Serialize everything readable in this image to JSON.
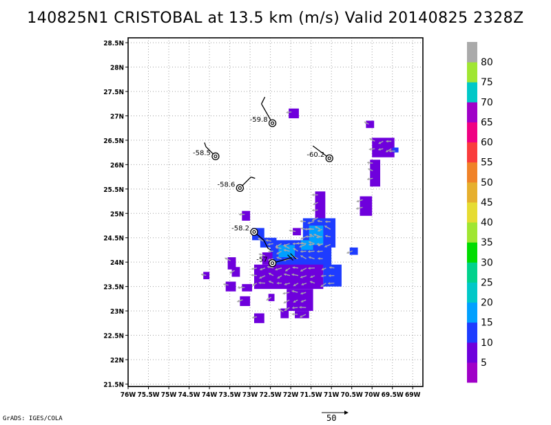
{
  "title": "140825N1 CRISTOBAL at 13.5 km (m/s) Valid 20140825 2328Z",
  "credit": "GrADS: IGES/COLA",
  "reference_vector": {
    "label": "50",
    "value": 50
  },
  "colors": {
    "grid": "#a0a0a0",
    "frame": "#000000",
    "vector": "#a8a8a8"
  },
  "chart_data": {
    "type": "heatmap",
    "title": "140825N1 CRISTOBAL at 13.5 km (m/s) Valid 20140825 2328Z",
    "xlim": [
      -76,
      -68.75
    ],
    "ylim": [
      21.45,
      28.6
    ],
    "grid": true,
    "legend": "right",
    "x_ticks": [
      {
        "v": -76,
        "label": "76W"
      },
      {
        "v": -75.5,
        "label": "75.5W"
      },
      {
        "v": -75,
        "label": "75W"
      },
      {
        "v": -74.5,
        "label": "74.5W"
      },
      {
        "v": -74,
        "label": "74W"
      },
      {
        "v": -73.5,
        "label": "73.5W"
      },
      {
        "v": -73,
        "label": "73W"
      },
      {
        "v": -72.5,
        "label": "72.5W"
      },
      {
        "v": -72,
        "label": "72W"
      },
      {
        "v": -71.5,
        "label": "71.5W"
      },
      {
        "v": -71,
        "label": "71W"
      },
      {
        "v": -70.5,
        "label": "70.5W"
      },
      {
        "v": -70,
        "label": "70W"
      },
      {
        "v": -69.5,
        "label": "69.5W"
      },
      {
        "v": -69,
        "label": "69W"
      }
    ],
    "y_ticks": [
      {
        "v": 21.5,
        "label": "21.5N"
      },
      {
        "v": 22,
        "label": "22N"
      },
      {
        "v": 22.5,
        "label": "22.5N"
      },
      {
        "v": 23,
        "label": "23N"
      },
      {
        "v": 23.5,
        "label": "23.5N"
      },
      {
        "v": 24,
        "label": "24N"
      },
      {
        "v": 24.5,
        "label": "24.5N"
      },
      {
        "v": 25,
        "label": "25N"
      },
      {
        "v": 25.5,
        "label": "25.5N"
      },
      {
        "v": 26,
        "label": "26N"
      },
      {
        "v": 26.5,
        "label": "26.5N"
      },
      {
        "v": 27,
        "label": "27N"
      },
      {
        "v": 27.5,
        "label": "27.5N"
      },
      {
        "v": 28,
        "label": "28N"
      },
      {
        "v": 28.5,
        "label": "28.5N"
      }
    ],
    "colorbar": {
      "colors": [
        "#a000c8",
        "#6e00dc",
        "#1e3cff",
        "#00a0ff",
        "#00c8c8",
        "#00d28c",
        "#00dc00",
        "#a0e632",
        "#e6dc32",
        "#e6af2d",
        "#f08228",
        "#fa3c3c",
        "#f00082",
        "#a000c8",
        "#00c8c8",
        "#a0e632",
        "#aaaaaa"
      ],
      "labels": [
        {
          "v": 5,
          "label": "5"
        },
        {
          "v": 10,
          "label": "10"
        },
        {
          "v": 15,
          "label": "15"
        },
        {
          "v": 20,
          "label": "20"
        },
        {
          "v": 25,
          "label": "25"
        },
        {
          "v": 30,
          "label": "30"
        },
        {
          "v": 35,
          "label": "35"
        },
        {
          "v": 40,
          "label": "40"
        },
        {
          "v": 45,
          "label": "45"
        },
        {
          "v": 50,
          "label": "50"
        },
        {
          "v": 55,
          "label": "55"
        },
        {
          "v": 60,
          "label": "60"
        },
        {
          "v": 65,
          "label": "65"
        },
        {
          "v": 70,
          "label": "70"
        },
        {
          "v": 75,
          "label": "75"
        },
        {
          "v": 80,
          "label": "80"
        }
      ]
    },
    "regions": [
      {
        "lon": [
          -71.4,
          -71.15
        ],
        "lat": [
          24.8,
          25.45
        ],
        "value": 5
      },
      {
        "lon": [
          -71.7,
          -70.9
        ],
        "lat": [
          24.3,
          24.9
        ],
        "value": 10
      },
      {
        "lon": [
          -72.5,
          -71.0
        ],
        "lat": [
          23.9,
          24.45
        ],
        "value": 10
      },
      {
        "lon": [
          -72.9,
          -71.2
        ],
        "lat": [
          23.45,
          23.95
        ],
        "value": 5
      },
      {
        "lon": [
          -71.2,
          -70.75
        ],
        "lat": [
          23.5,
          23.95
        ],
        "value": 10
      },
      {
        "lon": [
          -72.1,
          -71.45
        ],
        "lat": [
          23.0,
          23.45
        ],
        "value": 5
      },
      {
        "lon": [
          -71.9,
          -71.55
        ],
        "lat": [
          22.85,
          23.0
        ],
        "value": 5
      },
      {
        "lon": [
          -72.3,
          -71.9
        ],
        "lat": [
          24.1,
          24.35
        ],
        "value": 15
      },
      {
        "lon": [
          -71.55,
          -71.2
        ],
        "lat": [
          24.35,
          24.75
        ],
        "value": 15
      },
      {
        "lon": [
          -71.75,
          -71.45
        ],
        "lat": [
          24.25,
          24.45
        ],
        "value": 15
      },
      {
        "lon": [
          -71.95,
          -71.75
        ],
        "lat": [
          24.55,
          24.7
        ],
        "value": 5
      },
      {
        "lon": [
          -72.95,
          -72.65
        ],
        "lat": [
          24.45,
          24.7
        ],
        "value": 10
      },
      {
        "lon": [
          -72.75,
          -72.35
        ],
        "lat": [
          24.3,
          24.5
        ],
        "value": 10
      },
      {
        "lon": [
          -72.7,
          -72.45
        ],
        "lat": [
          23.95,
          24.2
        ],
        "value": 5
      },
      {
        "lon": [
          -73.2,
          -73.0
        ],
        "lat": [
          24.85,
          25.05
        ],
        "value": 5
      },
      {
        "lon": [
          -73.55,
          -73.35
        ],
        "lat": [
          23.85,
          24.1
        ],
        "value": 5
      },
      {
        "lon": [
          -73.45,
          -73.25
        ],
        "lat": [
          23.7,
          23.9
        ],
        "value": 5
      },
      {
        "lon": [
          -73.2,
          -72.95
        ],
        "lat": [
          23.4,
          23.55
        ],
        "value": 5
      },
      {
        "lon": [
          -73.6,
          -73.35
        ],
        "lat": [
          23.4,
          23.6
        ],
        "value": 5
      },
      {
        "lon": [
          -74.15,
          -74.0
        ],
        "lat": [
          23.65,
          23.8
        ],
        "value": 5
      },
      {
        "lon": [
          -73.25,
          -73.0
        ],
        "lat": [
          23.1,
          23.3
        ],
        "value": 5
      },
      {
        "lon": [
          -72.9,
          -72.65
        ],
        "lat": [
          22.75,
          22.95
        ],
        "value": 5
      },
      {
        "lon": [
          -72.25,
          -72.05
        ],
        "lat": [
          22.85,
          23.05
        ],
        "value": 5
      },
      {
        "lon": [
          -72.55,
          -72.4
        ],
        "lat": [
          23.2,
          23.35
        ],
        "value": 5
      },
      {
        "lon": [
          -70.55,
          -70.35
        ],
        "lat": [
          24.15,
          24.3
        ],
        "value": 10
      },
      {
        "lon": [
          -70.3,
          -70.0
        ],
        "lat": [
          24.95,
          25.35
        ],
        "value": 5
      },
      {
        "lon": [
          -70.05,
          -69.8
        ],
        "lat": [
          25.55,
          26.1
        ],
        "value": 5
      },
      {
        "lon": [
          -70.0,
          -69.45
        ],
        "lat": [
          26.15,
          26.55
        ],
        "value": 5
      },
      {
        "lon": [
          -69.5,
          -69.35
        ],
        "lat": [
          26.25,
          26.35
        ],
        "value": 10
      },
      {
        "lon": [
          -70.15,
          -69.95
        ],
        "lat": [
          26.75,
          26.9
        ],
        "value": 5
      },
      {
        "lon": [
          -72.05,
          -71.8
        ],
        "lat": [
          26.95,
          27.15
        ],
        "value": 5
      }
    ],
    "observations": [
      {
        "label": "-59.8",
        "lon": -72.45,
        "lat": 26.85
      },
      {
        "label": "-60.2",
        "lon": -71.05,
        "lat": 26.13
      },
      {
        "label": "-58.5",
        "lon": -73.85,
        "lat": 26.17
      },
      {
        "label": "-58.6",
        "lon": -73.25,
        "lat": 25.52
      },
      {
        "label": "-58.2",
        "lon": -72.9,
        "lat": 24.62
      },
      {
        "label": "-57",
        "lon": -72.45,
        "lat": 23.98
      }
    ]
  }
}
